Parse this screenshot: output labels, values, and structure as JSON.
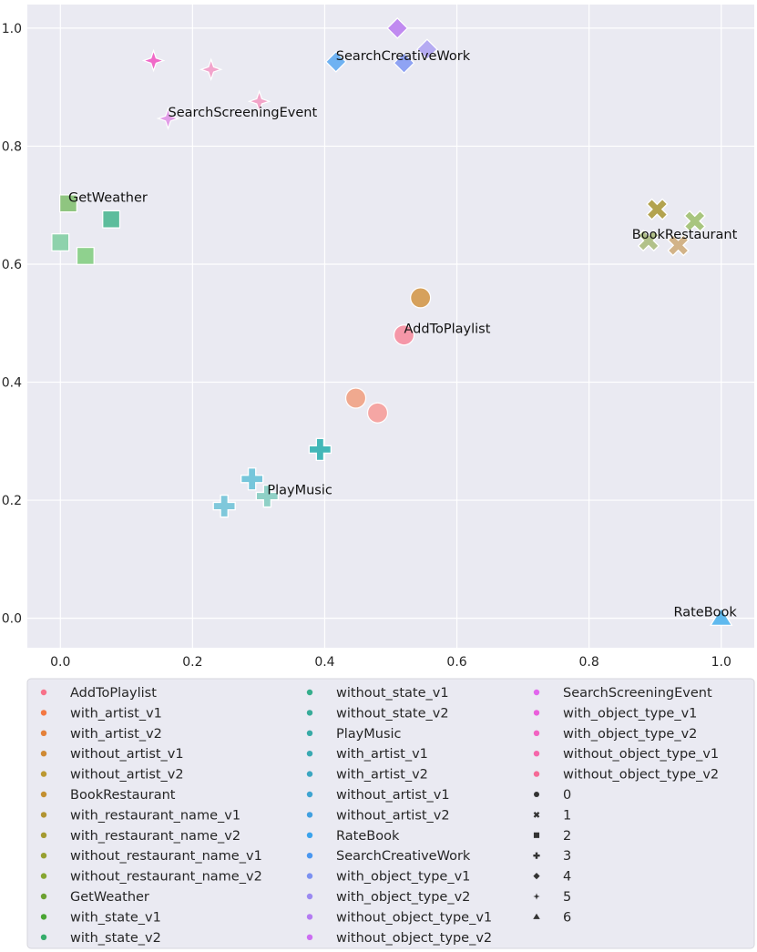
{
  "chart_data": {
    "type": "scatter",
    "title": "",
    "xlabel": "",
    "ylabel": "",
    "xlim": [
      -0.05,
      1.05
    ],
    "ylim": [
      -0.05,
      1.04
    ],
    "xticks": [
      "0.0",
      "0.2",
      "0.4",
      "0.6",
      "0.8",
      "1.0"
    ],
    "yticks": [
      "0.0",
      "0.2",
      "0.4",
      "0.6",
      "0.8",
      "1.0"
    ],
    "grid": true,
    "legend_position": "below",
    "hue_legend": [
      {
        "label": "AddToPlaylist",
        "color": "#f77189"
      },
      {
        "label": "with_artist_v1",
        "color": "#f47843"
      },
      {
        "label": "with_artist_v2",
        "color": "#e4813a"
      },
      {
        "label": "without_artist_v1",
        "color": "#cf8a35"
      },
      {
        "label": "without_artist_v2",
        "color": "#bb9832"
      },
      {
        "label": "BookRestaurant",
        "color": "#c39031"
      },
      {
        "label": "with_restaurant_name_v1",
        "color": "#b19432"
      },
      {
        "label": "with_restaurant_name_v2",
        "color": "#a49a31"
      },
      {
        "label": "without_restaurant_name_v1",
        "color": "#97a031"
      },
      {
        "label": "without_restaurant_name_v2",
        "color": "#86a631"
      },
      {
        "label": "GetWeather",
        "color": "#6ca131"
      },
      {
        "label": "with_state_v1",
        "color": "#4aa534"
      },
      {
        "label": "with_state_v2",
        "color": "#35ac6b"
      },
      {
        "label": "without_state_v1",
        "color": "#36ae8c"
      },
      {
        "label": "without_state_v2",
        "color": "#37ab99"
      },
      {
        "label": "PlayMusic",
        "color": "#38aaa6"
      },
      {
        "label": "with_artist_v1",
        "color": "#39a9b2"
      },
      {
        "label": "with_artist_v2",
        "color": "#3ba6c1"
      },
      {
        "label": "without_artist_v1",
        "color": "#3ea4d1"
      },
      {
        "label": "without_artist_v2",
        "color": "#41a0e0"
      },
      {
        "label": "RateBook",
        "color": "#3ba3ec"
      },
      {
        "label": "SearchCreativeWork",
        "color": "#4a97f0"
      },
      {
        "label": "with_object_type_v1",
        "color": "#7c91f1"
      },
      {
        "label": "with_object_type_v2",
        "color": "#9b8af1"
      },
      {
        "label": "without_object_type_v1",
        "color": "#b47cf2"
      },
      {
        "label": "without_object_type_v2",
        "color": "#cc6ef2"
      },
      {
        "label": "SearchScreeningEvent",
        "color": "#e167ed"
      },
      {
        "label": "with_object_type_v1",
        "color": "#ea5fdb"
      },
      {
        "label": "with_object_type_v2",
        "color": "#f263c2"
      },
      {
        "label": "without_object_type_v1",
        "color": "#f567ab"
      },
      {
        "label": "without_object_type_v2",
        "color": "#f56b97"
      }
    ],
    "style_legend": [
      {
        "label": "0",
        "marker": "circle"
      },
      {
        "label": "1",
        "marker": "x"
      },
      {
        "label": "2",
        "marker": "square"
      },
      {
        "label": "3",
        "marker": "plus"
      },
      {
        "label": "4",
        "marker": "diamond"
      },
      {
        "label": "5",
        "marker": "star"
      },
      {
        "label": "6",
        "marker": "triangle"
      }
    ],
    "points": [
      {
        "group": "AddToPlaylist",
        "x": 0.52,
        "y": 0.48,
        "marker": "circle",
        "color": "#f597a8"
      },
      {
        "group": "AddToPlaylist",
        "x": 0.545,
        "y": 0.543,
        "marker": "circle",
        "color": "#d6a15c"
      },
      {
        "group": "AddToPlaylist",
        "x": 0.447,
        "y": 0.373,
        "marker": "circle",
        "color": "#f0a98f"
      },
      {
        "group": "AddToPlaylist",
        "x": 0.48,
        "y": 0.348,
        "marker": "circle",
        "color": "#f5a6a4"
      },
      {
        "group": "BookRestaurant",
        "x": 0.903,
        "y": 0.693,
        "marker": "x",
        "color": "#b3a34f"
      },
      {
        "group": "BookRestaurant",
        "x": 0.96,
        "y": 0.673,
        "marker": "x",
        "color": "#a8c57e"
      },
      {
        "group": "BookRestaurant",
        "x": 0.89,
        "y": 0.64,
        "marker": "x",
        "color": "#b2c18a"
      },
      {
        "group": "BookRestaurant",
        "x": 0.935,
        "y": 0.632,
        "marker": "x",
        "color": "#d2b388"
      },
      {
        "group": "GetWeather",
        "x": 0.012,
        "y": 0.703,
        "marker": "square",
        "color": "#8fc580"
      },
      {
        "group": "GetWeather",
        "x": 0.077,
        "y": 0.676,
        "marker": "square",
        "color": "#5dbd9c"
      },
      {
        "group": "GetWeather",
        "x": 0.0,
        "y": 0.637,
        "marker": "square",
        "color": "#8ed2ac"
      },
      {
        "group": "GetWeather",
        "x": 0.038,
        "y": 0.614,
        "marker": "square",
        "color": "#8fd18e"
      },
      {
        "group": "PlayMusic",
        "x": 0.393,
        "y": 0.286,
        "marker": "plus",
        "color": "#43b7b8"
      },
      {
        "group": "PlayMusic",
        "x": 0.29,
        "y": 0.236,
        "marker": "plus",
        "color": "#76c6db"
      },
      {
        "group": "PlayMusic",
        "x": 0.313,
        "y": 0.207,
        "marker": "plus",
        "color": "#8fd0c6"
      },
      {
        "group": "PlayMusic",
        "x": 0.248,
        "y": 0.19,
        "marker": "plus",
        "color": "#7fc8db"
      },
      {
        "group": "RateBook",
        "x": 1.0,
        "y": 0.0,
        "marker": "triangle",
        "color": "#5fb9ee"
      },
      {
        "group": "SearchCreativeWork",
        "x": 0.417,
        "y": 0.943,
        "marker": "diamond",
        "color": "#6fb2f2"
      },
      {
        "group": "SearchCreativeWork",
        "x": 0.51,
        "y": 1.0,
        "marker": "diamond",
        "color": "#c08af0"
      },
      {
        "group": "SearchCreativeWork",
        "x": 0.555,
        "y": 0.964,
        "marker": "diamond",
        "color": "#b5abf2"
      },
      {
        "group": "SearchCreativeWork",
        "x": 0.52,
        "y": 0.941,
        "marker": "diamond",
        "color": "#8fa3f3"
      },
      {
        "group": "SearchScreeningEvent",
        "x": 0.141,
        "y": 0.945,
        "marker": "star",
        "color": "#f06ac8"
      },
      {
        "group": "SearchScreeningEvent",
        "x": 0.228,
        "y": 0.93,
        "marker": "star",
        "color": "#f2a4cc"
      },
      {
        "group": "SearchScreeningEvent",
        "x": 0.301,
        "y": 0.876,
        "marker": "star",
        "color": "#f2a4c8"
      },
      {
        "group": "SearchScreeningEvent",
        "x": 0.163,
        "y": 0.847,
        "marker": "star",
        "color": "#e29ee8"
      }
    ],
    "annotations": [
      {
        "text": "SearchCreativeWork",
        "x": 0.417,
        "y": 0.943
      },
      {
        "text": "SearchScreeningEvent",
        "x": 0.163,
        "y": 0.847
      },
      {
        "text": "GetWeather",
        "x": 0.012,
        "y": 0.703
      },
      {
        "text": "BookRestaurant",
        "x": 0.865,
        "y": 0.64
      },
      {
        "text": "AddToPlaylist",
        "x": 0.52,
        "y": 0.48
      },
      {
        "text": "PlayMusic",
        "x": 0.313,
        "y": 0.207
      },
      {
        "text": "RateBook",
        "x": 0.928,
        "y": 0.0
      }
    ]
  }
}
